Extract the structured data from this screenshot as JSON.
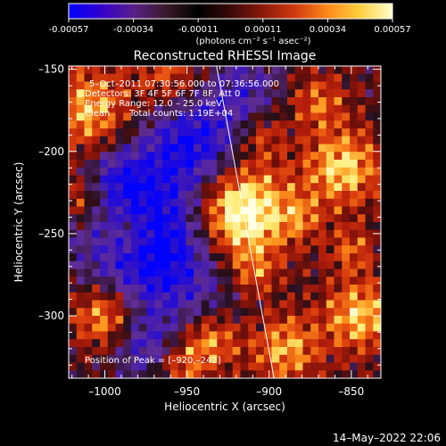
{
  "colorbar": {
    "ticks": [
      "-0.00057",
      "-0.00034",
      "-0.00011",
      "0.00011",
      "0.00034",
      "0.00057"
    ],
    "units": "(photons cm⁻² s⁻¹ asec⁻²)",
    "stops": [
      "#0000ff",
      "#3300cc",
      "#5a1f8a",
      "#3a1a2a",
      "#000000",
      "#3a0a0a",
      "#8a1a0a",
      "#d23a10",
      "#ff8a1a",
      "#ffd040",
      "#ffffcc"
    ]
  },
  "annotation": {
    "time_range": "5–Oct–2011 07:30:56.000 to 07:36:56.000",
    "detectors": "Detectors: 3F 4F 5F 6F 7F 8F, Att 0",
    "energy": "Energy Range: 12.0 – 25.0 keV",
    "method": "Clean",
    "counts": "Total counts: 1.19E+04",
    "peak": "Position of Peak = [–920,–242]"
  },
  "footer": {
    "timestamp": "14–May–2022 22:06"
  },
  "chart_data": {
    "type": "heatmap",
    "title": "Reconstructed RHESSI Image",
    "xlabel": "Heliocentric X (arcsec)",
    "ylabel": "Heliocentric Y (arcsec)",
    "xlim": [
      -1022,
      -832
    ],
    "ylim": [
      -338,
      -148
    ],
    "xticks": [
      -1000,
      -950,
      -900,
      -850
    ],
    "yticks": [
      -150,
      -200,
      -250,
      -300
    ],
    "xtick_labels": [
      "–1000",
      "–950",
      "–900",
      "–850"
    ],
    "ytick_labels": [
      "–150",
      "–200",
      "–250",
      "–300"
    ],
    "peak": [
      -920,
      -242
    ],
    "limb_line": [
      [
        -932,
        -148
      ],
      [
        -897,
        -338
      ]
    ],
    "grid": false
  }
}
